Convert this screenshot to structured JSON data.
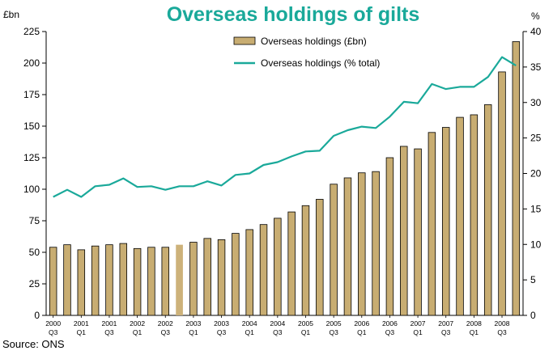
{
  "chart_data": {
    "type": "bar+line",
    "title": "Overseas holdings of gilts",
    "title_color": "#1aa99a",
    "source": "Source: ONS",
    "y_left": {
      "unit": "£bn",
      "min": 0,
      "max": 225,
      "ticks": [
        0,
        25,
        50,
        75,
        100,
        125,
        150,
        175,
        200,
        225
      ]
    },
    "y_right": {
      "unit": "%",
      "min": 0,
      "max": 40,
      "ticks": [
        0,
        5,
        10,
        15,
        20,
        25,
        30,
        35,
        40
      ]
    },
    "x_labels": [
      [
        "2000",
        "Q3"
      ],
      [
        "2001",
        "Q1"
      ],
      [
        "2001",
        "Q3"
      ],
      [
        "2002",
        "Q1"
      ],
      [
        "2002",
        "Q3"
      ],
      [
        "2003",
        "Q1"
      ],
      [
        "2003",
        "Q3"
      ],
      [
        "2004",
        "Q1"
      ],
      [
        "2004",
        "Q3"
      ],
      [
        "2005",
        "Q1"
      ],
      [
        "2005",
        "Q3"
      ],
      [
        "2006",
        "Q1"
      ],
      [
        "2006",
        "Q3"
      ],
      [
        "2007",
        "Q1"
      ],
      [
        "2007",
        "Q3"
      ],
      [
        "2008",
        "Q1"
      ],
      [
        "2008",
        "Q3"
      ]
    ],
    "series": [
      {
        "name": "Overseas holdings (£bn)",
        "type": "bar",
        "axis": "left",
        "color": "#c8ad72",
        "highlight_color": "#cdb27a",
        "highlight_index": 9,
        "values": [
          54,
          56,
          52,
          55,
          56,
          57,
          53,
          54,
          54,
          56,
          58,
          61,
          60,
          65,
          68,
          72,
          77,
          82,
          87,
          92,
          104,
          109,
          113,
          114,
          125,
          134,
          132,
          145,
          149,
          157,
          159,
          167,
          193,
          217
        ]
      },
      {
        "name": "Overseas holdings (% total)",
        "type": "line",
        "axis": "right",
        "color": "#1aa99a",
        "values": [
          16.7,
          17.7,
          16.7,
          18.2,
          18.4,
          19.3,
          18.1,
          18.2,
          17.7,
          18.2,
          18.2,
          18.9,
          18.3,
          19.8,
          20.0,
          21.2,
          21.6,
          22.4,
          23.1,
          23.2,
          25.3,
          26.1,
          26.6,
          26.4,
          28.0,
          30.1,
          29.9,
          32.6,
          31.9,
          32.2,
          32.2,
          33.6,
          36.4,
          35.2
        ]
      }
    ]
  }
}
